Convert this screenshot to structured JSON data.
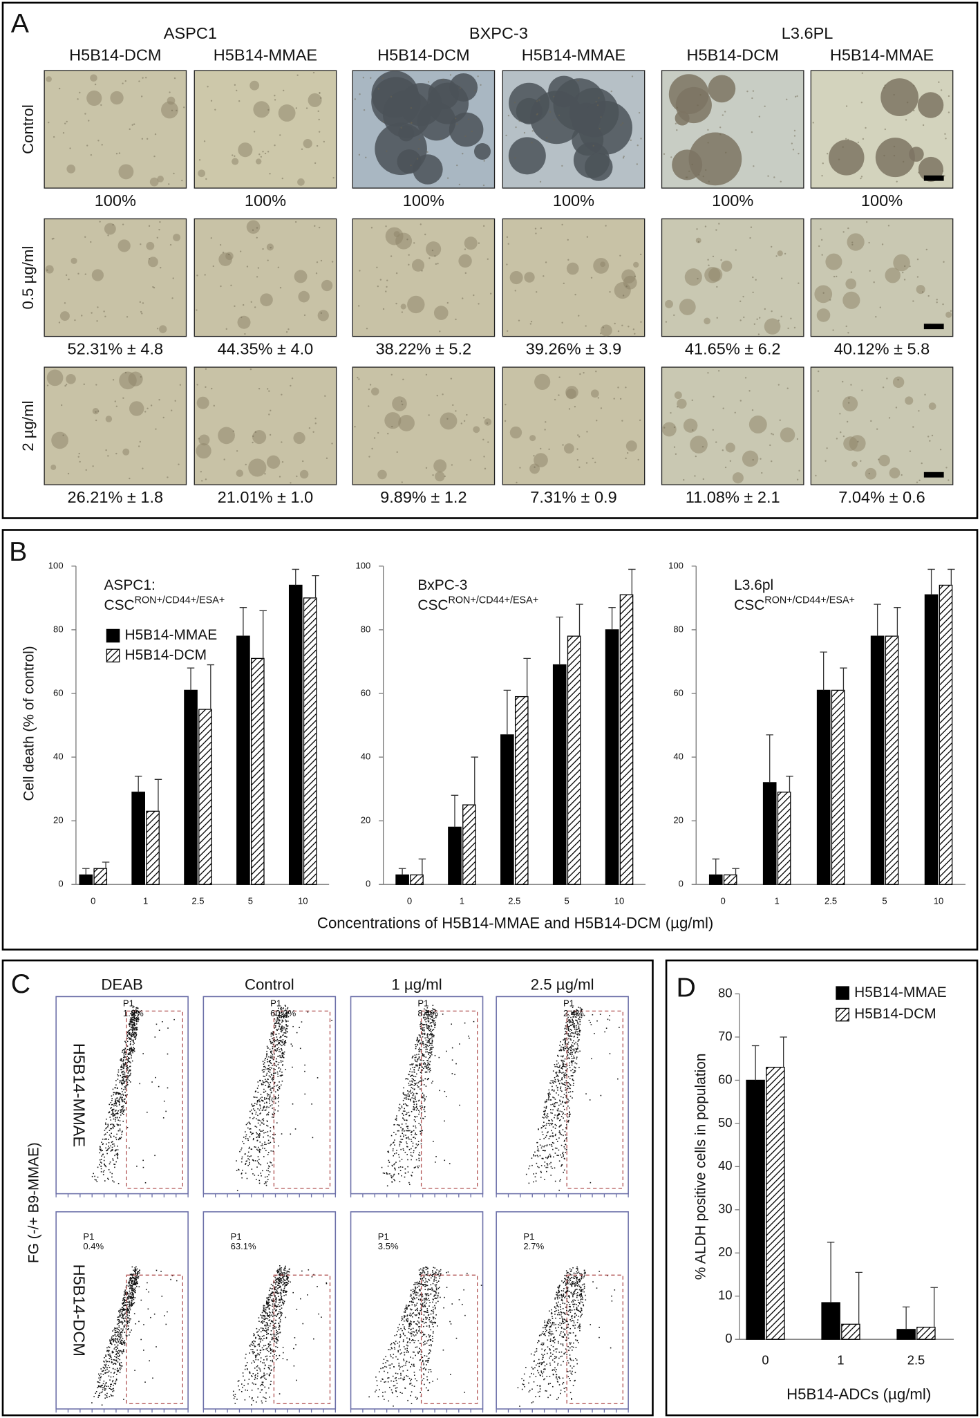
{
  "panel_a": {
    "label": "A",
    "groups": [
      {
        "name": "ASPC1",
        "columns": [
          "H5B14-DCM",
          "H5B14-MMAE"
        ]
      },
      {
        "name": "BXPC-3",
        "columns": [
          "H5B14-DCM",
          "H5B14-MMAE"
        ]
      },
      {
        "name": "L3.6PL",
        "columns": [
          "H5B14-DCM",
          "H5B14-MMAE"
        ]
      }
    ],
    "rows": [
      {
        "label": "Control",
        "results": [
          "100%",
          "100%",
          "100%",
          "100%",
          "100%",
          "100%"
        ]
      },
      {
        "label": "0.5 µg/ml",
        "results": [
          "52.31% ± 4.8",
          "44.35% ± 4.0",
          "38.22% ± 5.2",
          "39.26% ± 3.9",
          "41.65% ± 6.2",
          "40.12% ± 5.8"
        ]
      },
      {
        "label": "2 µg/ml",
        "results": [
          "26.21% ± 1.8",
          "21.01% ± 1.0",
          "9.89% ± 1.2",
          "7.31% ± 0.9",
          "11.08% ± 2.1",
          "7.04% ± 0.6"
        ]
      }
    ]
  },
  "panel_b": {
    "label": "B",
    "xlabel": "Concentrations of H5B14-MMAE and H5B14-DCM (µg/ml)",
    "ylabel": "Cell death (% of control)"
  },
  "panel_c": {
    "label": "C",
    "ylabel": "FG (-/+ B9-MMAE)",
    "columns": [
      "DEAB",
      "Control",
      "1 µg/ml",
      "2.5 µg/ml"
    ],
    "rows": [
      {
        "label": "H5B14-MMAE",
        "gates": [
          {
            "name": "P1",
            "percent": "1.8%"
          },
          {
            "name": "P1",
            "percent": "60.2%"
          },
          {
            "name": "P1",
            "percent": "8.4%"
          },
          {
            "name": "P1",
            "percent": "2.4%"
          }
        ]
      },
      {
        "label": "H5B14-DCM",
        "gates": [
          {
            "name": "P1",
            "percent": "0.4%"
          },
          {
            "name": "P1",
            "percent": "63.1%"
          },
          {
            "name": "P1",
            "percent": "3.5%"
          },
          {
            "name": "P1",
            "percent": "2.7%"
          }
        ]
      }
    ]
  },
  "panel_d": {
    "label": "D"
  },
  "chart_data": [
    {
      "type": "bar",
      "title": "ASPC1:",
      "subtitle": "CSC",
      "subtitle_sup": "RON+/CD44+/ESA+",
      "categories": [
        "0",
        "1",
        "2.5",
        "5",
        "10"
      ],
      "ylim": [
        0,
        100
      ],
      "yticks": [
        0,
        20,
        40,
        60,
        80,
        100
      ],
      "legend": true,
      "series": [
        {
          "name": "H5B14-MMAE",
          "color": "#000000",
          "values": [
            3,
            29,
            61,
            78,
            94
          ],
          "errors": [
            2,
            5,
            7,
            9,
            5
          ]
        },
        {
          "name": "H5B14-DCM",
          "color": "#000000",
          "hatch": true,
          "values": [
            5,
            23,
            55,
            71,
            90
          ],
          "errors": [
            2,
            10,
            14,
            15,
            7
          ]
        }
      ]
    },
    {
      "type": "bar",
      "title": "BxPC-3",
      "subtitle": "CSC",
      "subtitle_sup": "RON+/CD44+/ESA+",
      "categories": [
        "0",
        "1",
        "2.5",
        "5",
        "10"
      ],
      "ylim": [
        0,
        100
      ],
      "yticks": [
        0,
        20,
        40,
        60,
        80,
        100
      ],
      "legend": false,
      "series": [
        {
          "name": "H5B14-MMAE",
          "color": "#000000",
          "values": [
            3,
            18,
            47,
            69,
            80
          ],
          "errors": [
            2,
            10,
            14,
            15,
            7
          ]
        },
        {
          "name": "H5B14-DCM",
          "color": "#000000",
          "hatch": true,
          "values": [
            3,
            25,
            59,
            78,
            91
          ],
          "errors": [
            5,
            15,
            12,
            10,
            8
          ]
        }
      ]
    },
    {
      "type": "bar",
      "title": "L3.6pl",
      "subtitle": "CSC",
      "subtitle_sup": "RON+/CD44+/ESA+",
      "categories": [
        "0",
        "1",
        "2.5",
        "5",
        "10"
      ],
      "ylim": [
        0,
        100
      ],
      "yticks": [
        0,
        20,
        40,
        60,
        80,
        100
      ],
      "legend": false,
      "series": [
        {
          "name": "H5B14-MMAE",
          "color": "#000000",
          "values": [
            3,
            32,
            61,
            78,
            91
          ],
          "errors": [
            5,
            15,
            12,
            10,
            8
          ]
        },
        {
          "name": "H5B14-DCM",
          "color": "#000000",
          "hatch": true,
          "values": [
            3,
            29,
            61,
            78,
            94
          ],
          "errors": [
            2,
            5,
            7,
            9,
            5
          ]
        }
      ]
    },
    {
      "type": "bar",
      "xlabel": "H5B14-ADCs (µg/ml)",
      "ylabel": "% ALDH positive cells in population",
      "categories": [
        "0",
        "1",
        "2.5"
      ],
      "ylim": [
        0,
        80
      ],
      "yticks": [
        0,
        10,
        20,
        30,
        40,
        50,
        60,
        70,
        80
      ],
      "legend": true,
      "series": [
        {
          "name": "H5B14-MMAE",
          "color": "#000000",
          "values": [
            60,
            8.5,
            2.3
          ],
          "errors": [
            8,
            14,
            5.2
          ]
        },
        {
          "name": "H5B14-DCM",
          "color": "#000000",
          "hatch": true,
          "values": [
            63,
            3.5,
            2.8
          ],
          "errors": [
            7,
            12,
            9.2
          ]
        }
      ]
    }
  ]
}
